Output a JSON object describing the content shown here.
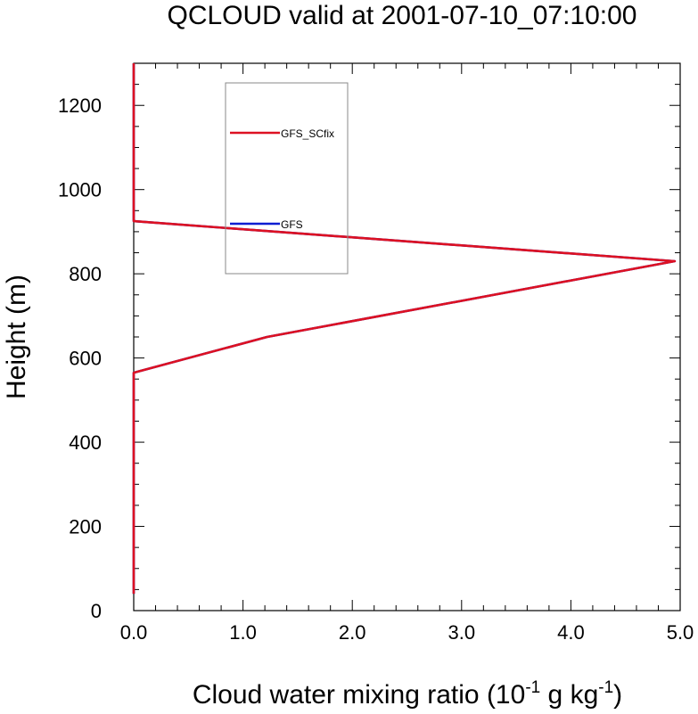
{
  "chart_data": {
    "type": "line",
    "title": "QCLOUD valid at 2001-07-10_07:10:00",
    "xlabel": {
      "prefix": "Cloud water mixing ratio (10",
      "exp1": "-1",
      "mid": " g kg",
      "exp2": "-1",
      "suffix": ")"
    },
    "ylabel": "Height (m)",
    "xlim": [
      0,
      5
    ],
    "ylim": [
      0,
      1300
    ],
    "x_ticks": [
      {
        "value": 0,
        "label": "0.0"
      },
      {
        "value": 1,
        "label": "1.0"
      },
      {
        "value": 2,
        "label": "2.0"
      },
      {
        "value": 3,
        "label": "3.0"
      },
      {
        "value": 4,
        "label": "4.0"
      },
      {
        "value": 5,
        "label": "5.0"
      }
    ],
    "y_ticks": [
      {
        "value": 0,
        "label": "0"
      },
      {
        "value": 200,
        "label": "200"
      },
      {
        "value": 400,
        "label": "400"
      },
      {
        "value": 600,
        "label": "600"
      },
      {
        "value": 800,
        "label": "800"
      },
      {
        "value": 1000,
        "label": "1000"
      },
      {
        "value": 1200,
        "label": "1200"
      }
    ],
    "grid": false,
    "legend_position": "top-left",
    "series": [
      {
        "name": "GFS",
        "color": "#0a1ed2",
        "x": [
          0,
          0,
          0,
          0,
          1.22,
          4.95,
          0,
          0,
          0
        ],
        "y": [
          40,
          300,
          500,
          565,
          650,
          830,
          925,
          1100,
          1300
        ]
      },
      {
        "name": "GFS_SCfix",
        "color": "#dd1122",
        "x": [
          0,
          0,
          0,
          0,
          1.22,
          4.95,
          0,
          0,
          0
        ],
        "y": [
          40,
          300,
          500,
          565,
          650,
          830,
          925,
          1100,
          1300
        ]
      }
    ]
  }
}
